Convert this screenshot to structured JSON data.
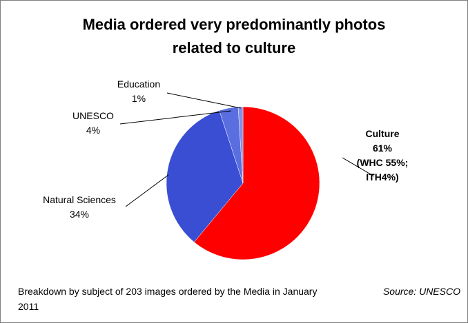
{
  "chart_data": {
    "type": "pie",
    "title_lines": [
      "Media ordered very predominantly photos",
      "related to culture"
    ],
    "slices": [
      {
        "name": "Culture",
        "value": 61,
        "label_lines": [
          "Culture",
          "61%",
          "(WHC 55%;",
          "ITH4%)"
        ],
        "color": "#ff0000"
      },
      {
        "name": "Natural Sciences",
        "value": 34,
        "label_lines": [
          "Natural Sciences",
          "34%"
        ],
        "color": "#3a4ed4"
      },
      {
        "name": "UNESCO",
        "value": 4,
        "label_lines": [
          "UNESCO",
          "4%"
        ],
        "color": "#5a6ee0"
      },
      {
        "name": "Education",
        "value": 1,
        "label_lines": [
          "Education",
          "1%"
        ],
        "color": "#8090ea"
      }
    ],
    "start_angle_deg": 0,
    "direction": "clockwise",
    "legend": "none"
  },
  "footnote": "Breakdown by subject of 203 images ordered by the Media in January 2011",
  "source": "Source: UNESCO"
}
